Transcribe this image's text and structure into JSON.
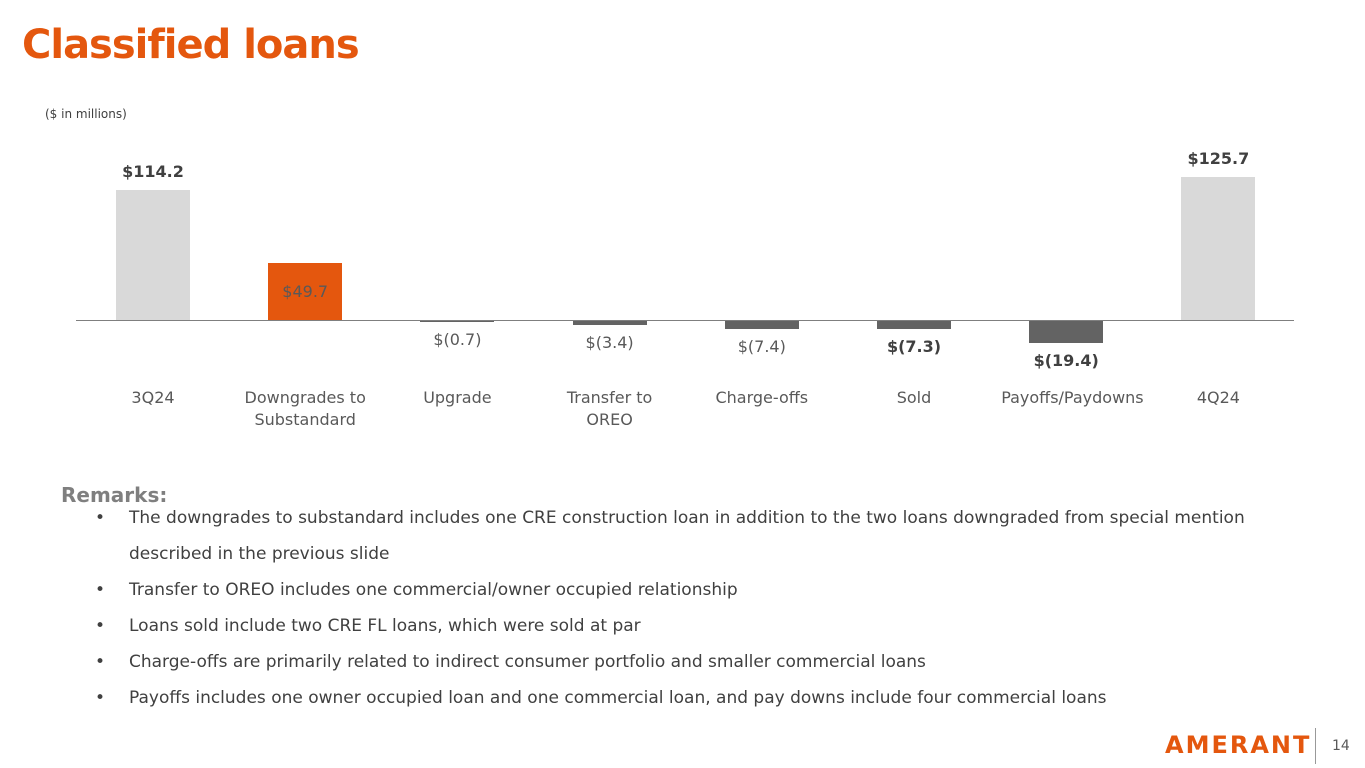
{
  "title": "Classified loans",
  "chart_data": {
    "type": "bar",
    "subtitle": "($ in millions)",
    "categories": [
      "3Q24",
      "Downgrades to Substandard",
      "Upgrade",
      "Transfer to OREO",
      "Charge-offs",
      "Sold",
      "Payoffs/Paydowns",
      "4Q24"
    ],
    "values": [
      114.2,
      49.7,
      -0.7,
      -3.4,
      -7.4,
      -7.3,
      -19.4,
      125.7
    ],
    "value_labels": [
      "$114.2",
      "$49.7",
      "$(0.7)",
      "$(3.4)",
      "$(7.4)",
      "$(7.3)",
      "$(19.4)",
      "$125.7"
    ],
    "colors": [
      "#d9d9d9",
      "#e4570e",
      "#636363",
      "#636363",
      "#636363",
      "#636363",
      "#636363",
      "#d9d9d9"
    ]
  },
  "remarks": {
    "heading": "Remarks:",
    "items": [
      "The downgrades to substandard includes one CRE construction loan in addition to the two loans downgraded from special mention described in the previous slide",
      "Transfer to OREO includes one commercial/owner occupied relationship",
      "Loans sold include two CRE FL loans, which were sold at par",
      "Charge-offs are primarily related to indirect consumer portfolio and smaller commercial loans",
      "Payoffs includes one owner occupied loan and one commercial loan, and pay downs include four commercial loans"
    ]
  },
  "footer": {
    "logo": "AMERANT",
    "page": "14"
  }
}
